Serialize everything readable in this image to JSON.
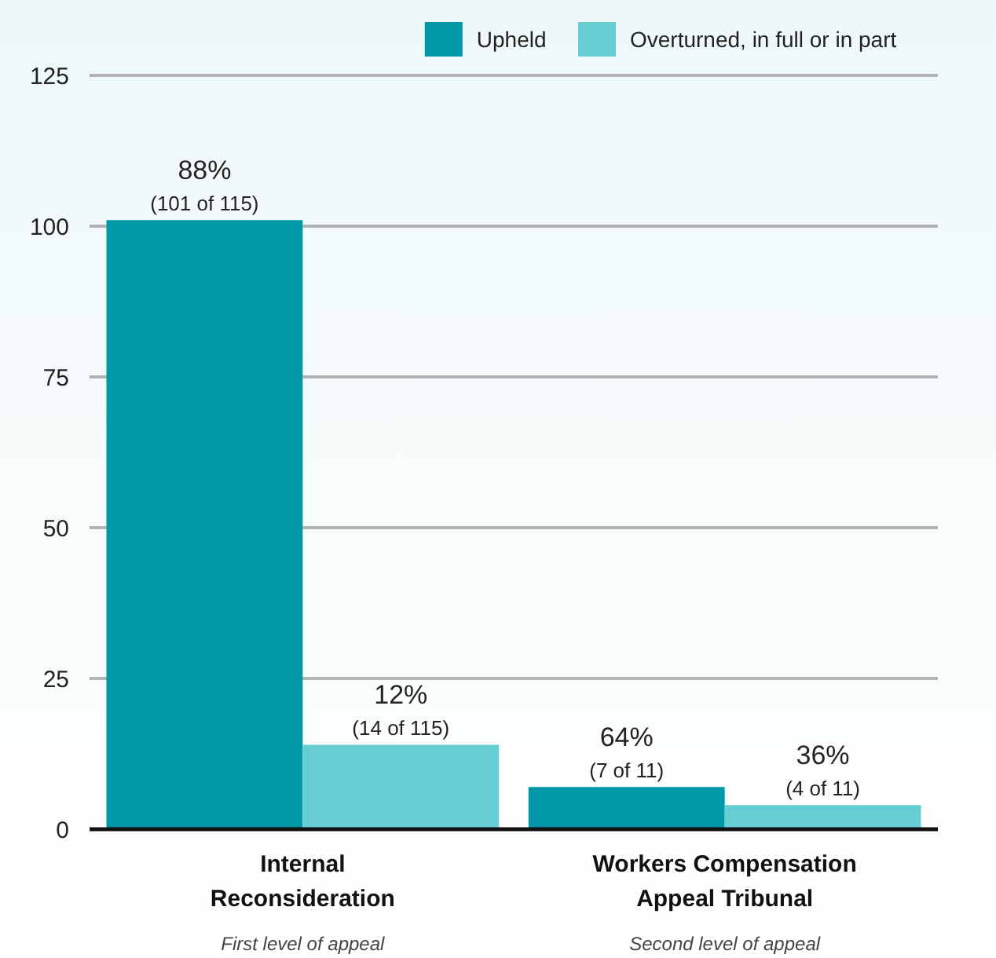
{
  "chart_data": {
    "type": "bar",
    "categories": [
      "Internal\nReconsideration",
      "Workers Compensation\nAppeal Tribunal"
    ],
    "series": [
      {
        "name": "Upheld",
        "color": "#0097a7",
        "values": [
          101,
          7
        ],
        "value_labels": [
          "88%\n(101 of 115)",
          "64%\n(7 of 11)"
        ]
      },
      {
        "name": "Overturned, in full or in part",
        "color": "#67cfd3",
        "values": [
          14,
          4
        ],
        "value_labels": [
          "12%\n(14 of 115)",
          "36%\n(4 of 11)"
        ]
      }
    ],
    "ylim": [
      0,
      125
    ],
    "yticks": [
      0,
      25,
      50,
      75,
      100,
      125
    ],
    "grid": "y",
    "legend": "top right",
    "annotations": [
      "First level of appeal",
      "Second level of appeal"
    ]
  }
}
